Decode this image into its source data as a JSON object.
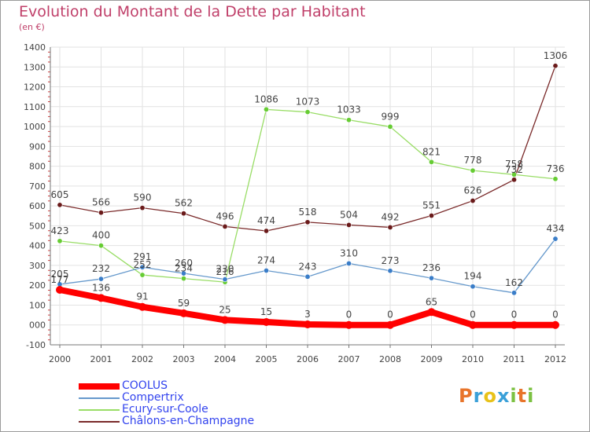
{
  "header": {
    "title": "Evolution du Montant de la Dette par Habitant",
    "unit": "(en €)"
  },
  "logo": {
    "letters": [
      "P",
      "r",
      "o",
      "x",
      "i",
      "t",
      "i"
    ],
    "colors": [
      "#e8742a",
      "#3aa0d8",
      "#e8c21a",
      "#3aa0d8",
      "#7cc142",
      "#e8742a",
      "#7cc142"
    ]
  },
  "chart_data": {
    "type": "line",
    "title": "Evolution du Montant de la Dette par Habitant",
    "subtitle": "(en €)",
    "xlabel": "",
    "ylabel": "",
    "x": [
      "2000",
      "2001",
      "2002",
      "2003",
      "2004",
      "2005",
      "2006",
      "2007",
      "2008",
      "2009",
      "2010",
      "2011",
      "2012"
    ],
    "ylim": [
      -100,
      1400
    ],
    "yticks": [
      -100,
      0,
      100,
      200,
      300,
      400,
      500,
      600,
      700,
      800,
      900,
      1000,
      1100,
      1200,
      1300,
      1400
    ],
    "ytick_labels": [
      "-100",
      "000",
      "100",
      "200",
      "300",
      "400",
      "500",
      "600",
      "700",
      "800",
      "900",
      "1000",
      "1100",
      "1200",
      "1300",
      "1400"
    ],
    "grid": true,
    "legend_position": "bottom-left",
    "series": [
      {
        "name": "COOLUS",
        "values": [
          177,
          136,
          91,
          59,
          25,
          15,
          3,
          0,
          0,
          65,
          0,
          0,
          0
        ],
        "color": "#ff0000",
        "marker": "#ff0000",
        "width": 8,
        "label_color": "#444444"
      },
      {
        "name": "Compertrix",
        "values": [
          205,
          232,
          291,
          260,
          230,
          274,
          243,
          310,
          273,
          236,
          194,
          162,
          434
        ],
        "color": "#6699cc",
        "marker": "#3a7dc8",
        "width": 1.3,
        "label_color": "#444444"
      },
      {
        "name": "Ecury-sur-Coole",
        "values": [
          423,
          400,
          252,
          234,
          216,
          1086,
          1073,
          1033,
          999,
          821,
          778,
          758,
          736
        ],
        "color": "#99dd66",
        "marker": "#66cc33",
        "width": 1.3,
        "label_color": "#444444"
      },
      {
        "name": "Châlons-en-Champagne",
        "values": [
          605,
          566,
          590,
          562,
          496,
          474,
          518,
          504,
          492,
          551,
          626,
          732,
          1306
        ],
        "color": "#7a2a2a",
        "marker": "#6a1a1a",
        "width": 1.3,
        "label_color": "#444444"
      }
    ],
    "data_labels": [
      {
        "series": 0,
        "labels": [
          "177",
          "136",
          "91",
          "59",
          "25",
          "15",
          "3",
          "0",
          "0",
          "65",
          "0",
          "0",
          "0"
        ]
      },
      {
        "series": 1,
        "labels": [
          "205",
          "232",
          "291",
          "260",
          "230",
          "274",
          "243",
          "310",
          "273",
          "236",
          "194",
          "162",
          "434"
        ]
      },
      {
        "series": 2,
        "labels": [
          "423",
          "400",
          "252",
          "234",
          "216",
          "1086",
          "1073",
          "1033",
          "999",
          "821",
          "778",
          "758",
          "736"
        ]
      },
      {
        "series": 3,
        "labels": [
          "605",
          "566",
          "590",
          "562",
          "496",
          "474",
          "518",
          "504",
          "492",
          "551",
          "626",
          "732",
          "1306"
        ]
      }
    ]
  },
  "legend": {
    "items": [
      {
        "label": "COOLUS",
        "color": "#ff0000",
        "label_color": "#3344ee"
      },
      {
        "label": "Compertrix",
        "color": "#6699cc",
        "label_color": "#3344ee"
      },
      {
        "label": "Ecury-sur-Coole",
        "color": "#99dd66",
        "label_color": "#3344ee"
      },
      {
        "label": "Châlons-en-Champagne",
        "color": "#7a2a2a",
        "label_color": "#3344ee"
      }
    ]
  }
}
